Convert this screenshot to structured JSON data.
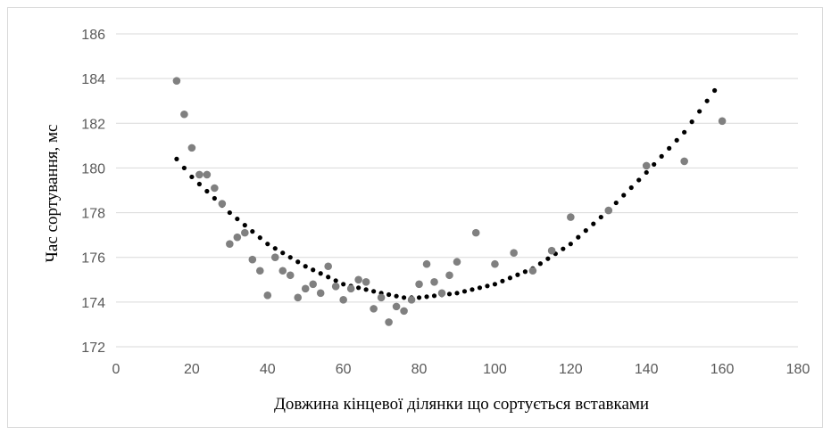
{
  "chart_data": {
    "type": "scatter",
    "title": "",
    "xlabel": "Довжина кінцевої ділянки що сортується вставками",
    "ylabel": "Час сортування, мс",
    "xlim": [
      0,
      180
    ],
    "ylim": [
      172,
      186
    ],
    "x_ticks": [
      0,
      20,
      40,
      60,
      80,
      100,
      120,
      140,
      160,
      180
    ],
    "y_ticks": [
      172,
      174,
      176,
      178,
      180,
      182,
      184,
      186
    ],
    "grid": "horizontal",
    "legend": "none",
    "series": [
      {
        "color": "#808080",
        "points": [
          [
            16,
            183.9
          ],
          [
            18,
            182.4
          ],
          [
            20,
            180.9
          ],
          [
            22,
            179.7
          ],
          [
            24,
            179.7
          ],
          [
            26,
            179.1
          ],
          [
            28,
            178.4
          ],
          [
            30,
            176.6
          ],
          [
            32,
            176.9
          ],
          [
            34,
            177.1
          ],
          [
            36,
            175.9
          ],
          [
            38,
            175.4
          ],
          [
            40,
            174.3
          ],
          [
            42,
            176.0
          ],
          [
            44,
            175.4
          ],
          [
            46,
            175.2
          ],
          [
            48,
            174.2
          ],
          [
            50,
            174.6
          ],
          [
            52,
            174.8
          ],
          [
            54,
            174.4
          ],
          [
            56,
            175.6
          ],
          [
            58,
            174.7
          ],
          [
            60,
            174.1
          ],
          [
            62,
            174.6
          ],
          [
            64,
            175.0
          ],
          [
            66,
            174.9
          ],
          [
            68,
            173.7
          ],
          [
            70,
            174.2
          ],
          [
            72,
            173.1
          ],
          [
            74,
            173.8
          ],
          [
            76,
            173.6
          ],
          [
            78,
            174.1
          ],
          [
            80,
            174.8
          ],
          [
            82,
            175.7
          ],
          [
            84,
            174.9
          ],
          [
            86,
            174.4
          ],
          [
            88,
            175.2
          ],
          [
            90,
            175.8
          ],
          [
            95,
            177.1
          ],
          [
            100,
            175.7
          ],
          [
            105,
            176.2
          ],
          [
            110,
            175.4
          ],
          [
            115,
            176.3
          ],
          [
            120,
            177.8
          ],
          [
            130,
            178.1
          ],
          [
            140,
            180.1
          ],
          [
            150,
            180.3
          ],
          [
            160,
            182.1
          ]
        ]
      }
    ],
    "trendline": {
      "type": "polynomial",
      "style": "dotted",
      "color": "#000000",
      "points": [
        [
          16,
          180.4
        ],
        [
          20,
          179.6
        ],
        [
          30,
          178.0
        ],
        [
          40,
          176.6
        ],
        [
          50,
          175.6
        ],
        [
          60,
          174.8
        ],
        [
          70,
          174.4
        ],
        [
          76,
          174.2
        ],
        [
          80,
          174.2
        ],
        [
          90,
          174.4
        ],
        [
          100,
          174.8
        ],
        [
          110,
          175.5
        ],
        [
          120,
          176.6
        ],
        [
          130,
          178.1
        ],
        [
          140,
          179.8
        ],
        [
          150,
          181.6
        ],
        [
          159,
          183.7
        ]
      ]
    }
  }
}
